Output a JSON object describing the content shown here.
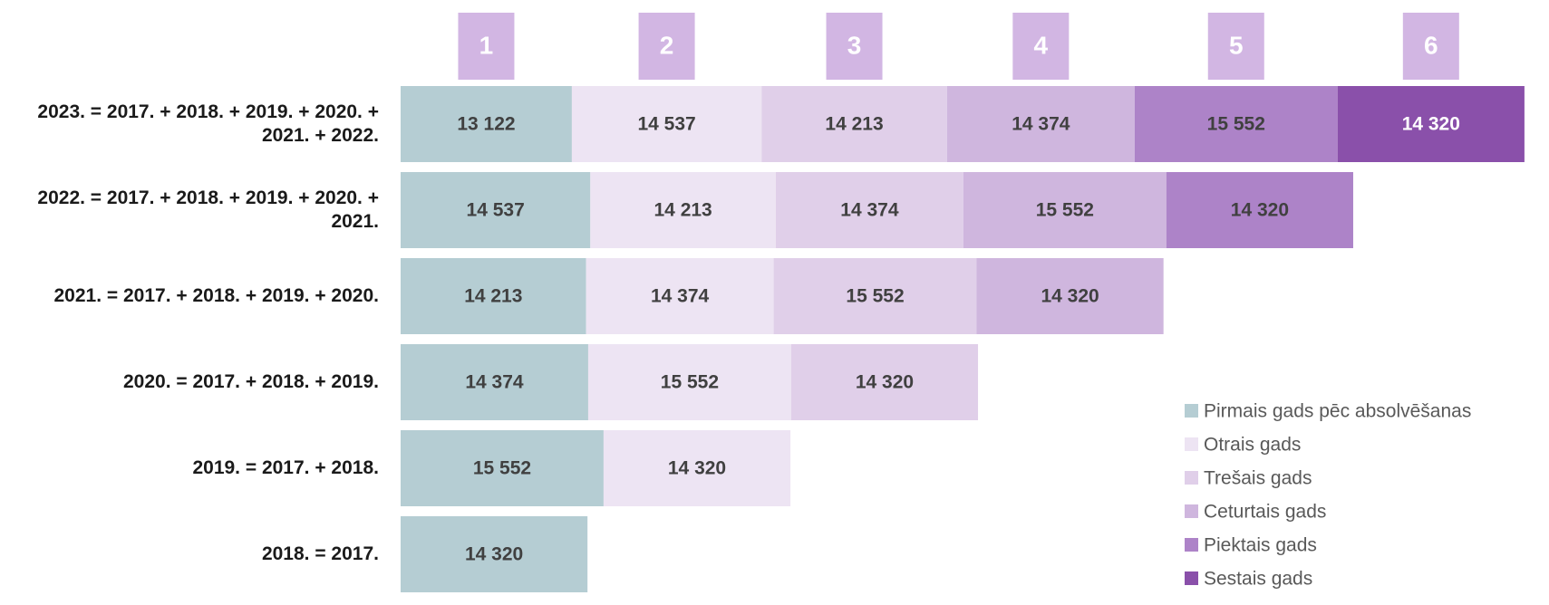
{
  "chart_data": {
    "type": "stacked-barh",
    "categories": [
      "2023. = 2017. + 2018. + 2019. + 2020. + 2021. + 2022.",
      "2022. = 2017. + 2018. + 2019. + 2020. + 2021.",
      "2021. = 2017. + 2018. + 2019. + 2020.",
      "2020. = 2017. + 2018. + 2019.",
      "2019. = 2017. + 2018.",
      "2018. = 2017."
    ],
    "column_labels": [
      "1",
      "2",
      "3",
      "4",
      "5",
      "6"
    ],
    "column_label_color": "#d2b6e3",
    "xlim": [
      0,
      88000
    ],
    "legend": "lower right",
    "series": [
      {
        "name": "Pirmais gads pēc absolvēšanas",
        "color": "#b5cdd3",
        "label_color": "#404040",
        "values": [
          13122,
          14537,
          14213,
          14374,
          15552,
          14320
        ],
        "value_labels": [
          "13 122",
          "14 537",
          "14 213",
          "14 374",
          "15 552",
          "14 320"
        ]
      },
      {
        "name": "Otrais gads",
        "color": "#ede4f3",
        "label_color": "#404040",
        "values": [
          14537,
          14213,
          14374,
          15552,
          14320,
          null
        ],
        "value_labels": [
          "14 537",
          "14 213",
          "14 374",
          "15 552",
          "14 320",
          null
        ]
      },
      {
        "name": "Trešais gads",
        "color": "#e0cfe9",
        "label_color": "#404040",
        "values": [
          14213,
          14374,
          15552,
          14320,
          null,
          null
        ],
        "value_labels": [
          "14 213",
          "14 374",
          "15 552",
          "14 320",
          null,
          null
        ]
      },
      {
        "name": "Ceturtais gads",
        "color": "#cfb6de",
        "label_color": "#404040",
        "values": [
          14374,
          15552,
          14320,
          null,
          null,
          null
        ],
        "value_labels": [
          "14 374",
          "15 552",
          "14 320",
          null,
          null,
          null
        ]
      },
      {
        "name": "Piektais gads",
        "color": "#ad83c8",
        "label_color": "#404040",
        "values": [
          15552,
          14320,
          null,
          null,
          null,
          null
        ],
        "value_labels": [
          "15 552",
          "14 320",
          null,
          null,
          null,
          null
        ]
      },
      {
        "name": "Sestais gads",
        "color": "#8a50aa",
        "label_color": "#ffffff",
        "values": [
          14320,
          null,
          null,
          null,
          null,
          null
        ],
        "value_labels": [
          "14 320",
          null,
          null,
          null,
          null,
          null
        ]
      }
    ]
  }
}
